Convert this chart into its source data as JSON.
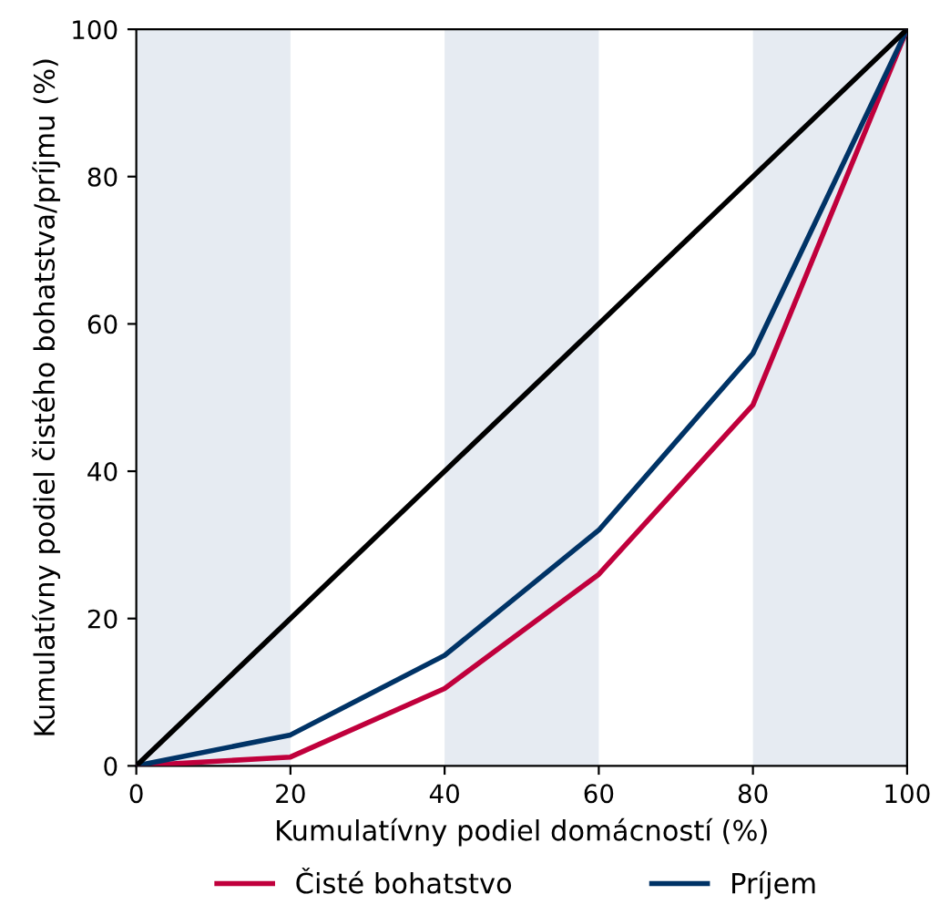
{
  "chart_data": {
    "type": "line",
    "xlabel": "Kumulatívny podiel domácností (%)",
    "ylabel": "Kumulatívny podiel čistého bohatstva/príjmu (%)",
    "series": [
      {
        "name": "Čisté bohatstvo",
        "color": "#c0003c",
        "x": [
          0,
          20,
          40,
          60,
          80,
          100
        ],
        "values": [
          0,
          1.2,
          10.5,
          26,
          49,
          100
        ]
      },
      {
        "name": "Príjem",
        "color": "#003366",
        "x": [
          0,
          20,
          40,
          60,
          80,
          100
        ],
        "values": [
          0,
          4.2,
          15,
          32,
          56,
          100
        ]
      },
      {
        "color": "#000000",
        "x": [
          0,
          100
        ],
        "values": [
          0,
          100
        ]
      }
    ],
    "bands": [
      {
        "axis": "x",
        "from": 0,
        "to": 20,
        "color": "#e6ebf2"
      },
      {
        "axis": "x",
        "from": 40,
        "to": 60,
        "color": "#e6ebf2"
      },
      {
        "axis": "x",
        "from": 80,
        "to": 100,
        "color": "#e6ebf2"
      }
    ],
    "xlim": [
      0,
      100
    ],
    "ylim": [
      0,
      100
    ],
    "xticks": [
      0,
      20,
      40,
      60,
      80,
      100
    ],
    "yticks": [
      0,
      20,
      40,
      60,
      80,
      100
    ],
    "grid": false,
    "legend": "bottom",
    "marker": "none",
    "line_style": "solid"
  }
}
